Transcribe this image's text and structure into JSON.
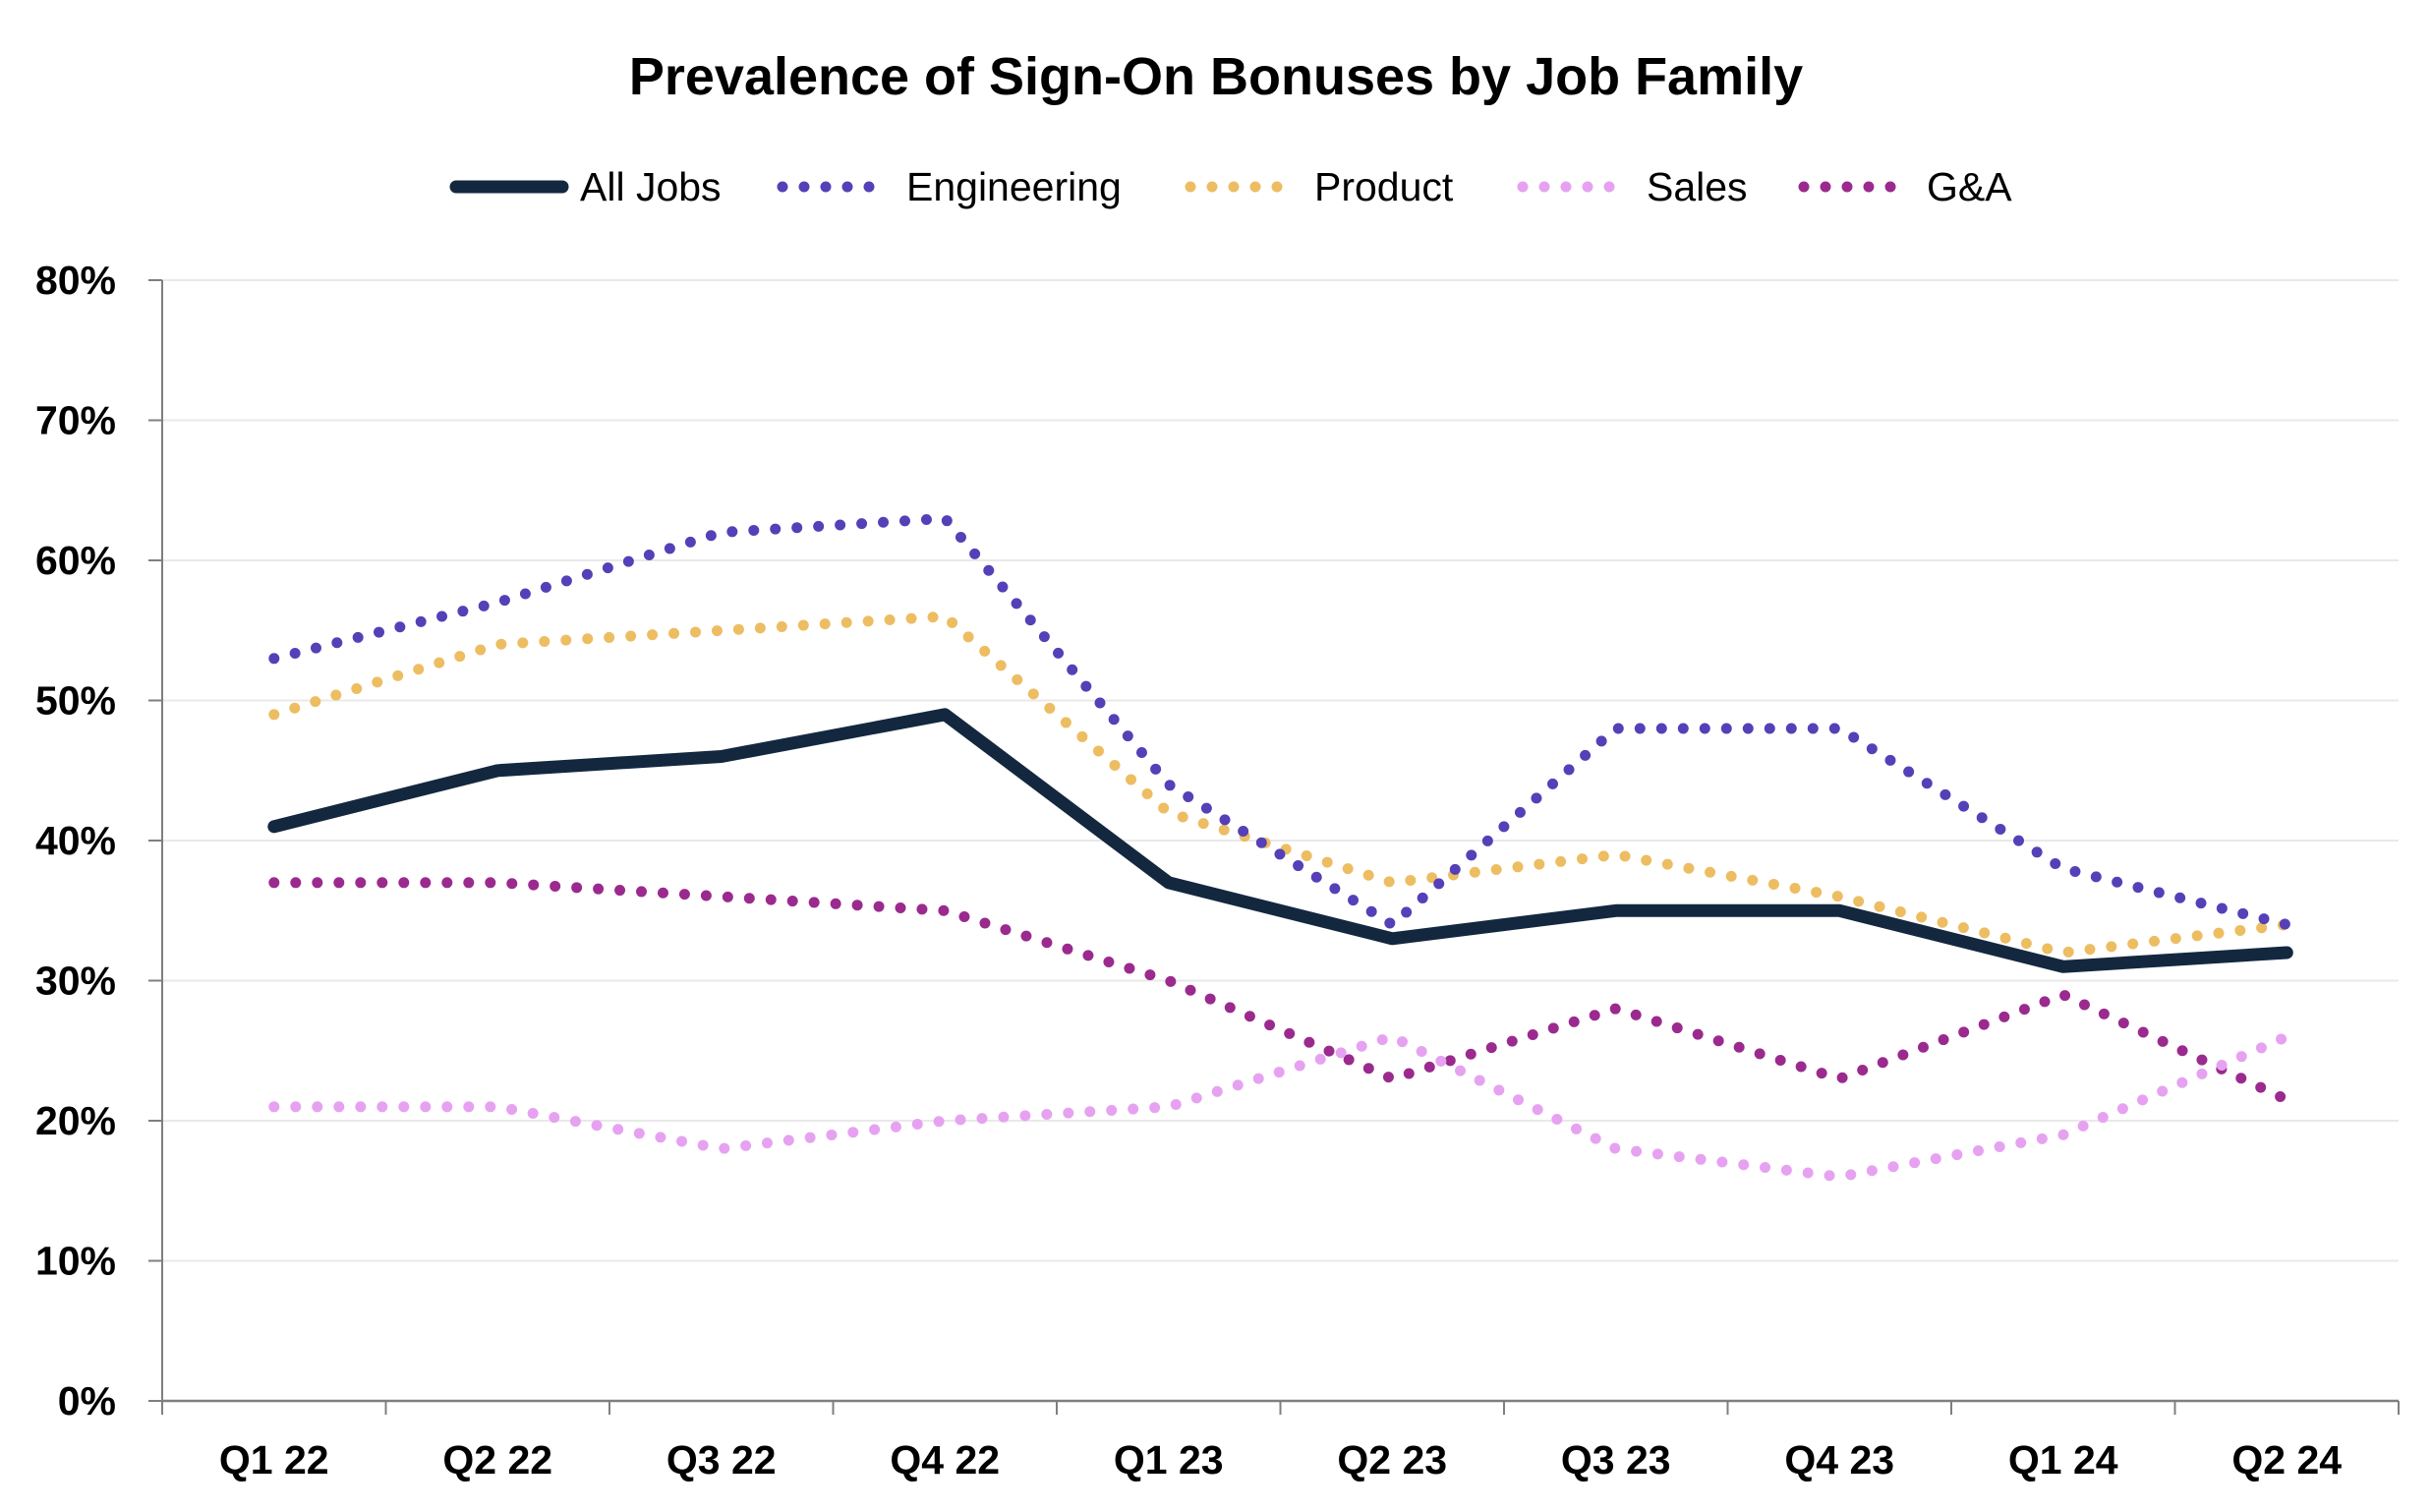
{
  "chart_data": {
    "type": "line",
    "title": "Prevalence of Sign-On Bonuses by Job Family",
    "xlabel": "",
    "ylabel": "",
    "ylim": [
      0,
      80
    ],
    "y_ticks": [
      0,
      10,
      20,
      30,
      40,
      50,
      60,
      70,
      80
    ],
    "y_tick_labels": [
      "0%",
      "10%",
      "20%",
      "30%",
      "40%",
      "50%",
      "60%",
      "70%",
      "80%"
    ],
    "grid": true,
    "legend_position": "top-center",
    "categories": [
      "Q1 22",
      "Q2 22",
      "Q3 22",
      "Q4 22",
      "Q1 23",
      "Q2 23",
      "Q3 23",
      "Q4 23",
      "Q1 24",
      "Q2 24"
    ],
    "series": [
      {
        "name": "All Jobs",
        "style": "solid",
        "color": "#13283f",
        "values": [
          41,
          45,
          46,
          49,
          37,
          33,
          35,
          35,
          31,
          32
        ]
      },
      {
        "name": "Engineering",
        "style": "dotted",
        "color": "#5540b8",
        "values": [
          53,
          57,
          62,
          63,
          44,
          34,
          48,
          48,
          38,
          34
        ]
      },
      {
        "name": "Product",
        "style": "dotted",
        "color": "#edbd62",
        "values": [
          49,
          54,
          55,
          56,
          42,
          37,
          39,
          36,
          32,
          34
        ]
      },
      {
        "name": "Sales",
        "style": "dotted",
        "color": "#e6a2f1",
        "values": [
          21,
          21,
          18,
          20,
          21,
          26,
          18,
          16,
          19,
          26
        ]
      },
      {
        "name": "G&A",
        "style": "dotted",
        "color": "#9b2a8e",
        "values": [
          37,
          37,
          36,
          35,
          30,
          23,
          28,
          23,
          29,
          21.5
        ]
      }
    ]
  }
}
